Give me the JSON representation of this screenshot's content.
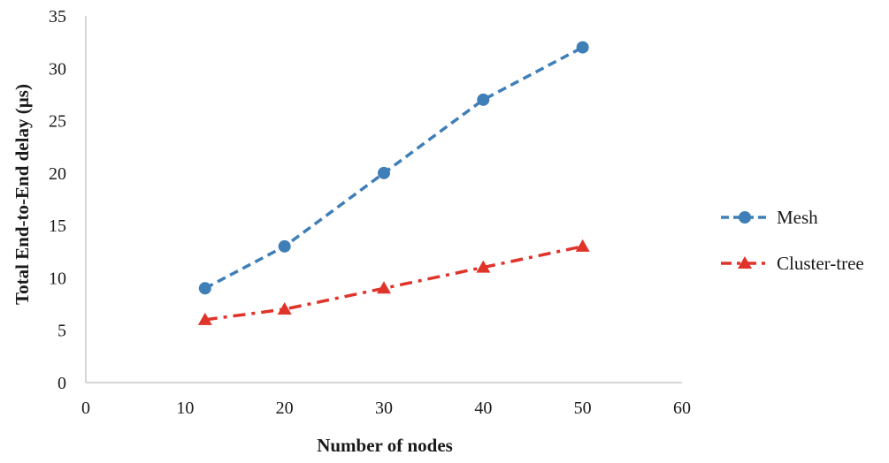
{
  "chart_data": {
    "type": "line",
    "title": "",
    "xlabel": "Number of nodes",
    "ylabel": "Total End-to-End delay (µs)",
    "xlim": [
      0,
      60
    ],
    "ylim": [
      0,
      35
    ],
    "xticks": [
      0,
      10,
      20,
      30,
      40,
      50,
      60
    ],
    "yticks": [
      0,
      5,
      10,
      15,
      20,
      25,
      30,
      35
    ],
    "grid": false,
    "legend_position": "right",
    "series": [
      {
        "name": "Mesh",
        "color": "#3f7fb8",
        "line_style": "dashed",
        "marker": "circle",
        "x": [
          12,
          20,
          30,
          40,
          50
        ],
        "y": [
          9,
          13,
          20,
          27,
          32
        ]
      },
      {
        "name": "Cluster-tree",
        "color": "#e0342a",
        "line_style": "dash-dot",
        "marker": "triangle",
        "x": [
          12,
          20,
          30,
          40,
          50
        ],
        "y": [
          6,
          7,
          9,
          11,
          13
        ]
      }
    ]
  }
}
